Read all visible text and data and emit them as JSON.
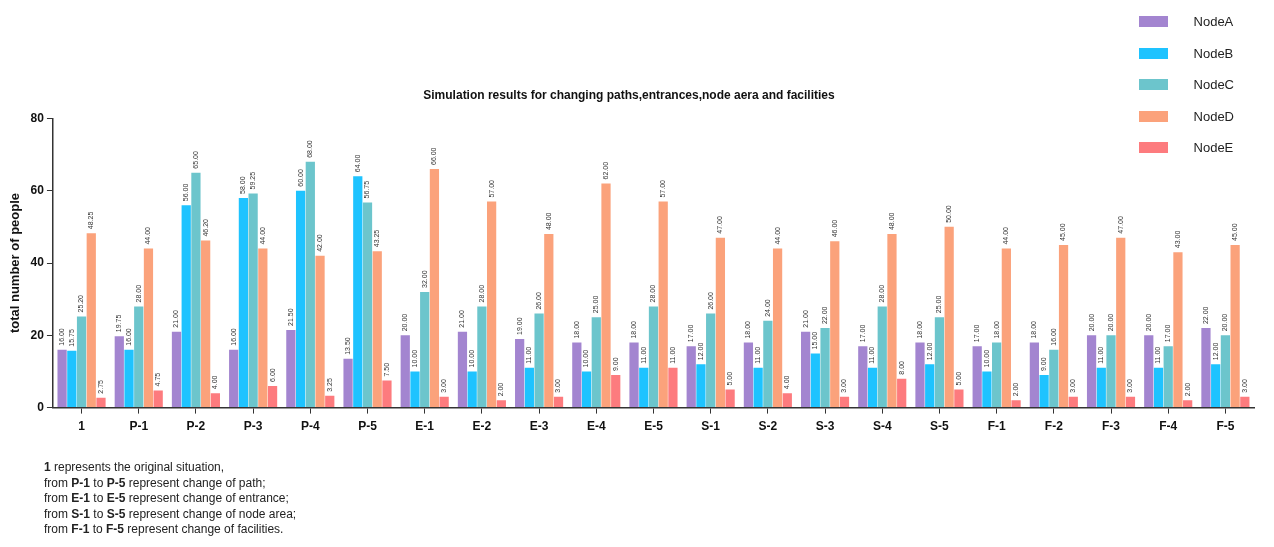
{
  "chart_data": {
    "type": "bar",
    "title": "Simulation results for changing paths,entrances,node aera and facilities",
    "ylabel": "total number of people",
    "categories": [
      "1",
      "P-1",
      "P-2",
      "P-3",
      "P-4",
      "P-5",
      "E-1",
      "E-2",
      "E-3",
      "E-4",
      "E-5",
      "S-1",
      "S-2",
      "S-3",
      "S-4",
      "S-5",
      "F-1",
      "F-2",
      "F-3",
      "F-4",
      "F-5"
    ],
    "series": [
      {
        "name": "NodeA",
        "color": "#a385d0",
        "values": [
          16,
          19.75,
          21,
          16,
          21.5,
          13.5,
          20,
          21,
          19,
          18,
          18,
          17,
          18,
          21,
          17,
          18,
          17,
          18,
          20,
          20,
          22
        ],
        "value_labels": [
          "16.00",
          "19.75",
          "21.00",
          "16.00",
          "21.50",
          "13.50",
          "20.00",
          "21.00",
          "19.00",
          "18.00",
          "18.00",
          "17.00",
          "18.00",
          "21.00",
          "17.00",
          "18.00",
          "17.00",
          "18.00",
          "20.00",
          "20.00",
          "22.00"
        ]
      },
      {
        "name": "NodeB",
        "color": "#1ec3ff",
        "values": [
          15.75,
          16,
          56,
          58,
          60,
          64,
          10,
          10,
          11,
          10,
          11,
          12,
          11,
          15,
          11,
          12,
          10,
          9,
          11,
          11,
          12
        ],
        "value_labels": [
          "15.75",
          "16.00",
          "56.00",
          "58.00",
          "60.00",
          "64.00",
          "10.00",
          "10.00",
          "11.00",
          "10.00",
          "11.00",
          "12.00",
          "11.00",
          "15.00",
          "11.00",
          "12.00",
          "10.00",
          "9.00",
          "11.00",
          "11.00",
          "12.00"
        ]
      },
      {
        "name": "NodeC",
        "color": "#6cc5cc",
        "values": [
          25.2,
          28,
          65,
          59.25,
          68,
          56.75,
          32,
          28,
          26,
          25,
          28,
          26,
          24,
          22,
          28,
          25,
          18,
          16,
          20,
          17,
          20
        ],
        "value_labels": [
          "25.20",
          "28.00",
          "65.00",
          "59.25",
          "68.00",
          "56.75",
          "32.00",
          "28.00",
          "26.00",
          "25.00",
          "28.00",
          "26.00",
          "24.00",
          "22.00",
          "28.00",
          "25.00",
          "18.00",
          "16.00",
          "20.00",
          "17.00",
          "20.00"
        ]
      },
      {
        "name": "NodeD",
        "color": "#fba27b",
        "values": [
          48.25,
          44,
          46.2,
          44,
          42,
          43.25,
          66,
          57,
          48,
          62,
          57,
          47,
          44,
          46,
          48,
          50,
          44,
          45,
          47,
          43,
          45
        ],
        "value_labels": [
          "48.25",
          "44.00",
          "46.20",
          "44.00",
          "42.00",
          "43.25",
          "66.00",
          "57.00",
          "48.00",
          "62.00",
          "57.00",
          "47.00",
          "44.00",
          "46.00",
          "48.00",
          "50.00",
          "44.00",
          "45.00",
          "47.00",
          "43.00",
          "45.00"
        ]
      },
      {
        "name": "NodeE",
        "color": "#fd7b7e",
        "values": [
          2.75,
          4.75,
          4,
          6,
          3.25,
          7.5,
          3,
          2,
          3,
          9,
          11,
          5,
          4,
          3,
          8,
          5,
          2,
          3,
          3,
          2,
          3
        ],
        "value_labels": [
          "2.75",
          "4.75",
          "4.00",
          "6.00",
          "3.25",
          "7.50",
          "3.00",
          "2.00",
          "3.00",
          "9.00",
          "11.00",
          "5.00",
          "4.00",
          "3.00",
          "8.00",
          "5.00",
          "2.00",
          "3.00",
          "3.00",
          "2.00",
          "3.00"
        ]
      }
    ],
    "ylim": [
      0,
      80
    ],
    "yticks": [
      0,
      20,
      40,
      60,
      80
    ],
    "grid": false,
    "legend": "top right",
    "annotations": [
      "1 represents the original situation,",
      "from P-1 to P-5 represent change of path;",
      "from E-1 to E-5 represent change of entrance;",
      "from S-1 to S-5 represent change of node area;",
      "from F-1 to F-5 represent change of facilities."
    ]
  }
}
